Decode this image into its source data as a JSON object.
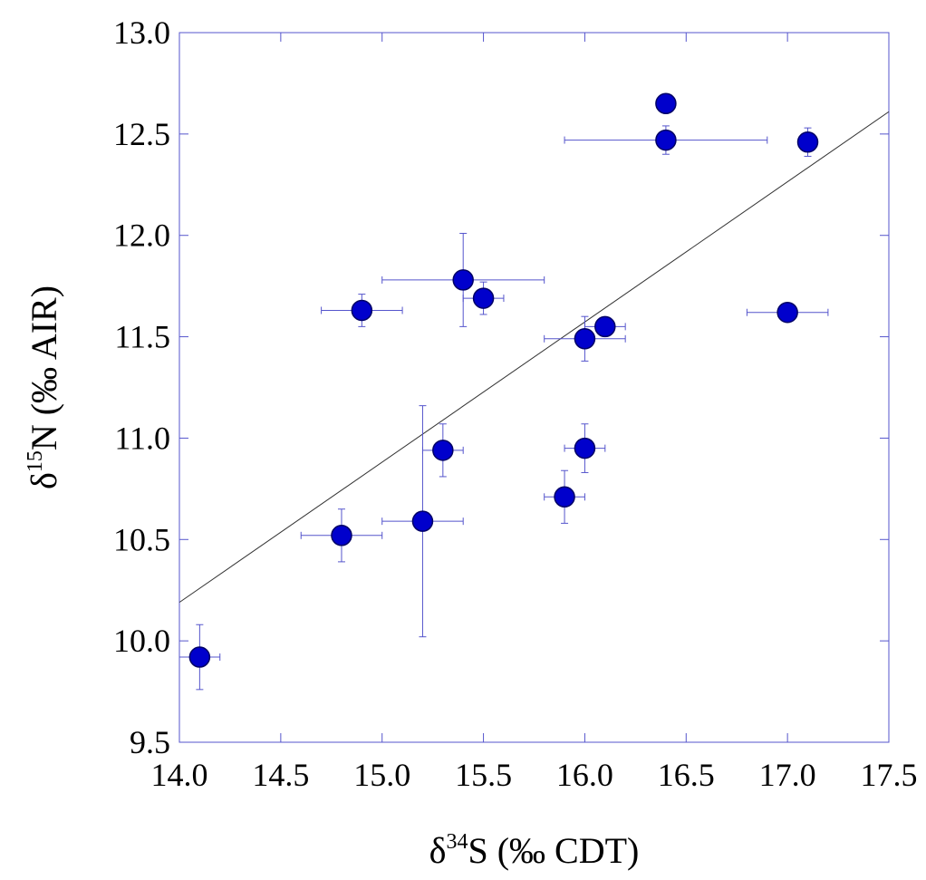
{
  "chart_data": {
    "type": "scatter",
    "x_label": {
      "prefix": "δ",
      "sup": "34",
      "main": "S (‰ CDT)"
    },
    "y_label": {
      "prefix": "δ",
      "sup": "15",
      "main": "N (‰ AIR)"
    },
    "x": [
      14.1,
      14.8,
      14.9,
      15.2,
      15.3,
      15.4,
      15.5,
      15.9,
      16.0,
      16.0,
      16.1,
      16.4,
      16.4,
      17.0,
      17.1
    ],
    "values": [
      9.92,
      10.52,
      11.63,
      10.59,
      10.94,
      11.78,
      11.69,
      10.71,
      11.49,
      10.95,
      11.55,
      12.65,
      12.47,
      11.62,
      12.46
    ],
    "x_errors": [
      0.1,
      0.2,
      0.2,
      0.2,
      0.1,
      0.4,
      0.1,
      0.1,
      0.2,
      0.1,
      0.1,
      null,
      0.5,
      0.2,
      null
    ],
    "y_errors": [
      0.16,
      0.13,
      0.08,
      0.57,
      0.13,
      0.23,
      0.08,
      0.13,
      0.11,
      0.12,
      null,
      null,
      0.07,
      null,
      0.07
    ],
    "color": "#0000cc",
    "axis_color": "#5555cc",
    "trendline": {
      "x": [
        14.0,
        17.5
      ],
      "y": [
        10.19,
        12.61
      ],
      "color": "#333333"
    },
    "xlim": [
      14.0,
      17.5
    ],
    "ylim": [
      9.5,
      13.0
    ],
    "xticks": [
      {
        "value": 14,
        "label": "14.0"
      },
      14.5,
      {
        "value": 15,
        "label": "15.0"
      },
      15.5,
      {
        "value": 16,
        "label": "16.0"
      },
      16.5,
      {
        "value": 17,
        "label": "17.0"
      },
      17.5
    ],
    "yticks": [
      9.5,
      {
        "value": 10,
        "label": "10.0"
      },
      10.5,
      {
        "value": 11,
        "label": "11.0"
      },
      11.5,
      {
        "value": 12,
        "label": "12.0"
      },
      12.5,
      {
        "value": 13,
        "label": "13.0"
      }
    ]
  }
}
